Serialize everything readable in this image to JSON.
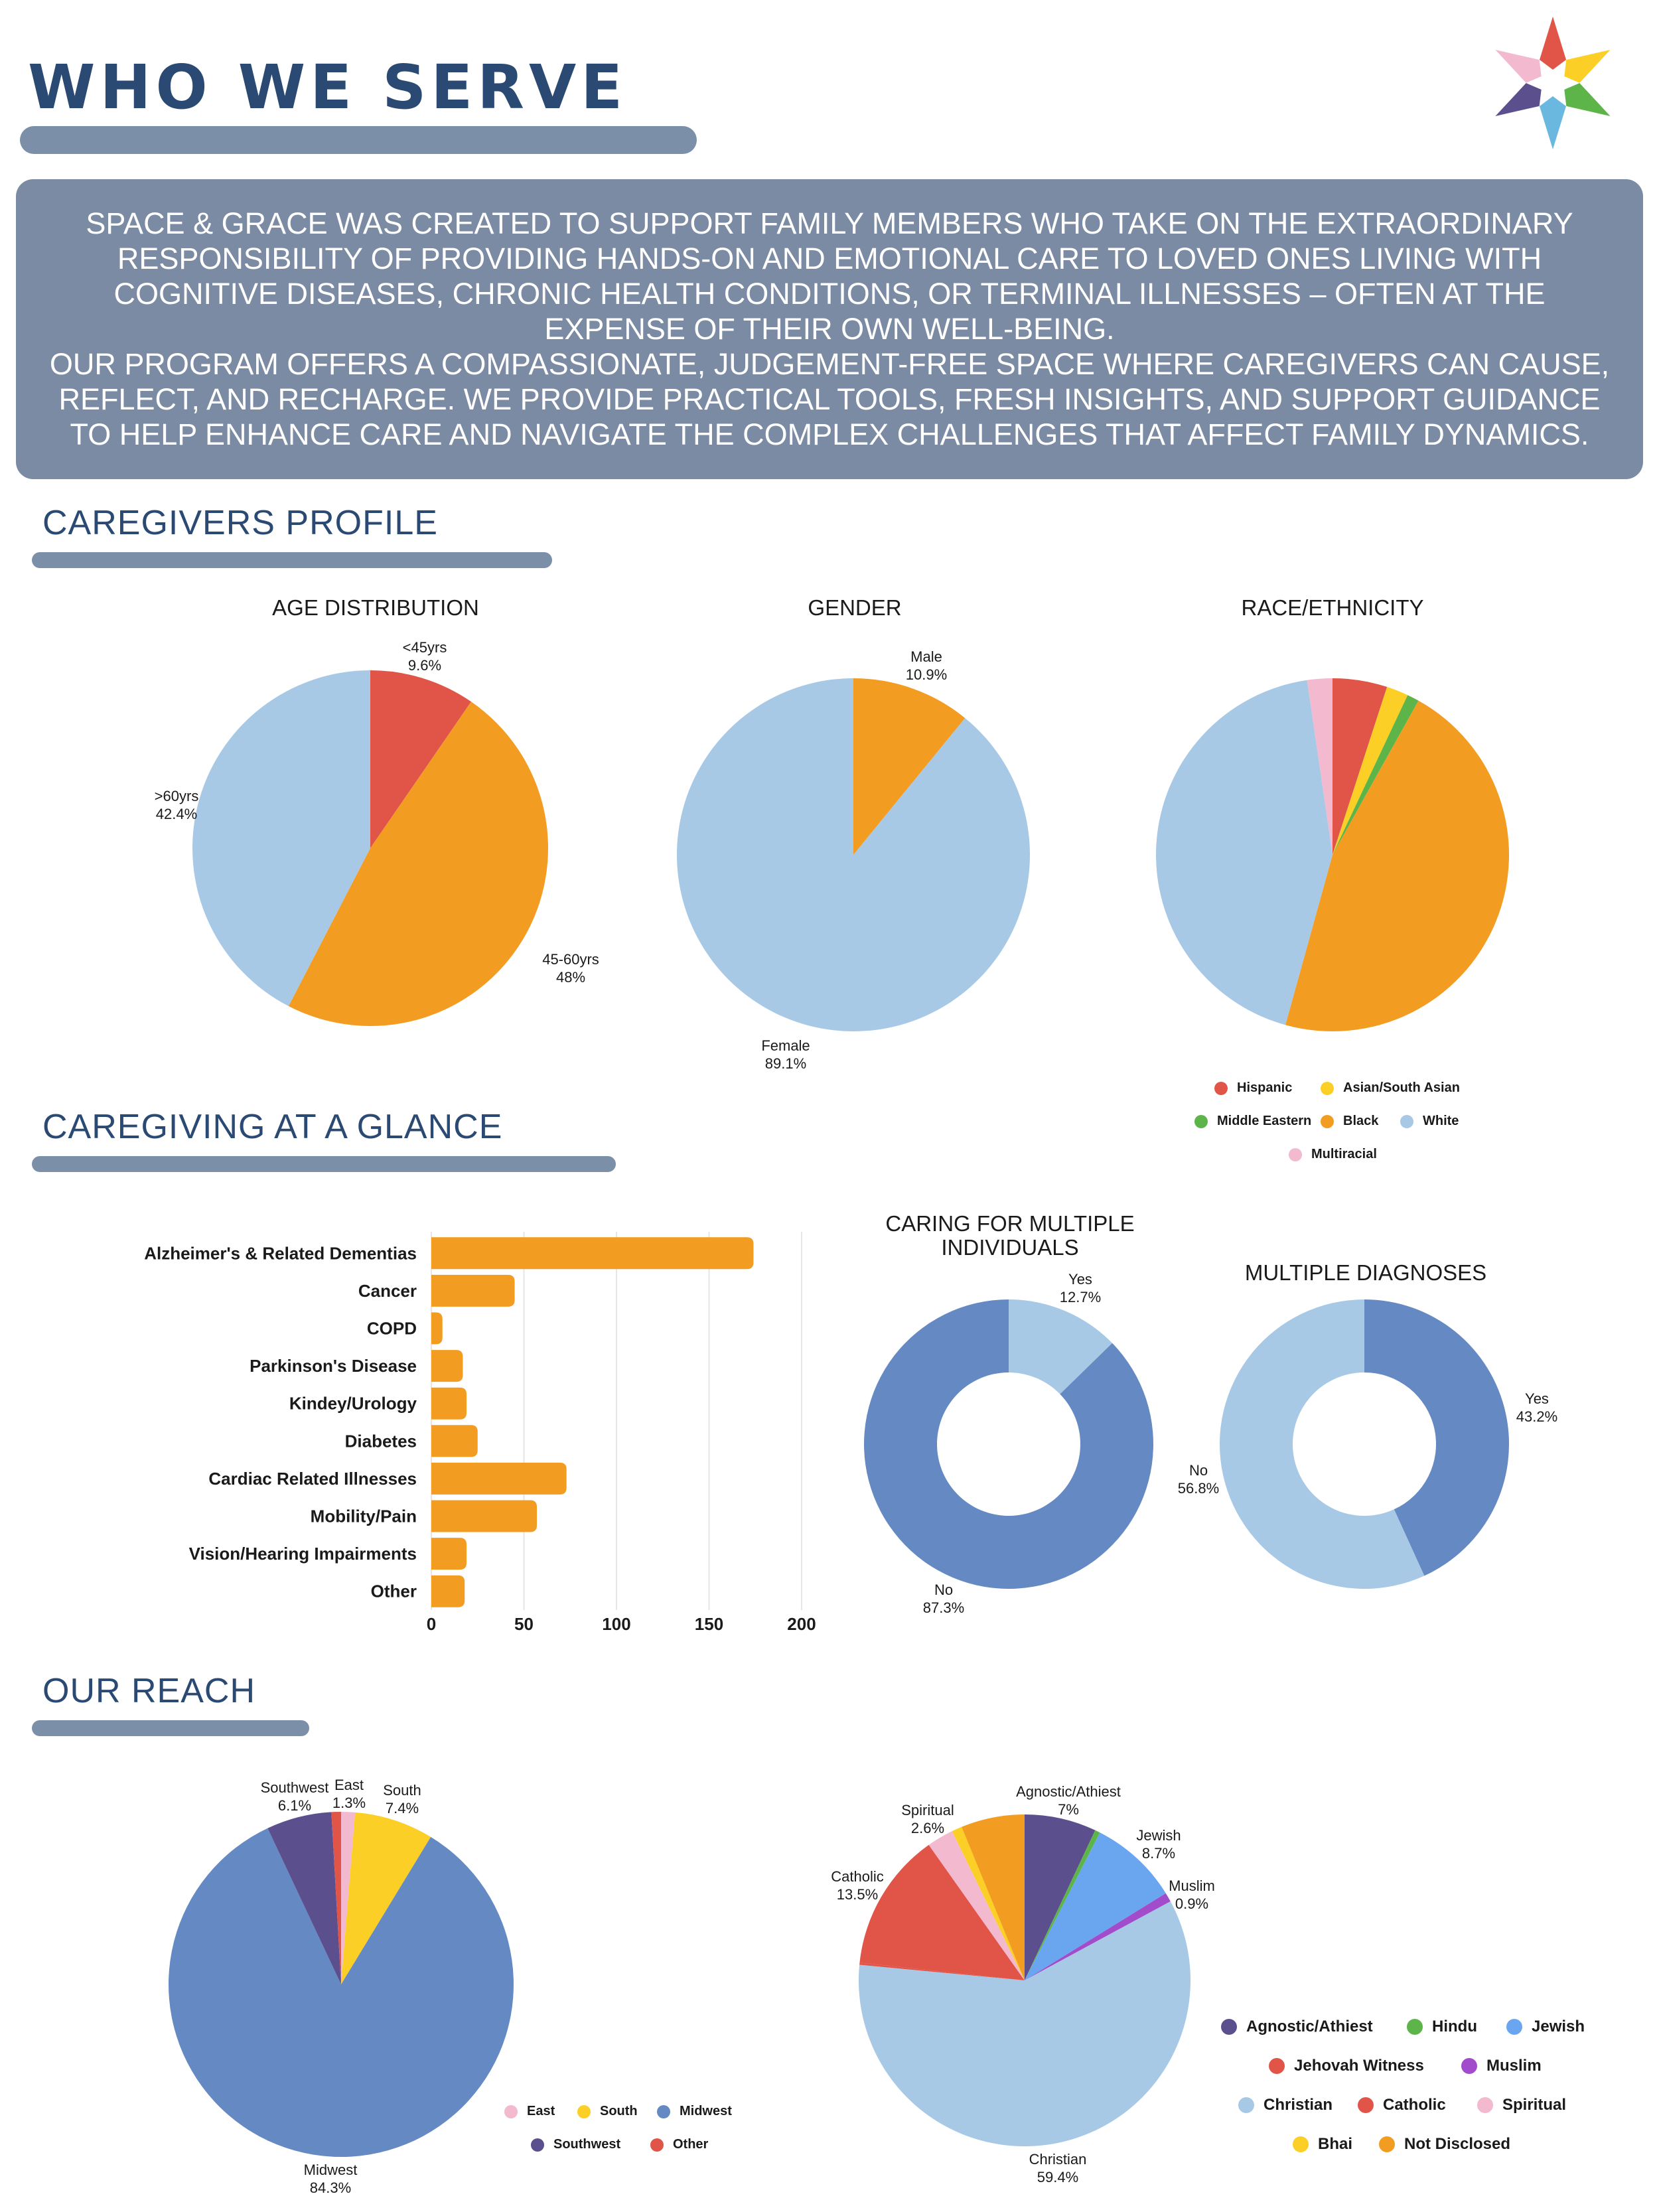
{
  "header": {
    "title": "WHO WE SERVE",
    "intro_p1": "Space & Grace was created to support family members who take on the extraordinary responsibility of providing hands-on and emotional care to loved ones living with cognitive diseases, chronic health conditions, or terminal illnesses – often at the expense of their own well-being.",
    "intro_p2": "Our program offers a compassionate, judgement-free space where caregivers can cause, reflect, and recharge. We provide practical tools, fresh insights, and support guidance to help enhance care and navigate the complex challenges that affect family dynamics."
  },
  "sections": {
    "profile": "CAREGIVERS PROFILE",
    "glance": "CAREGIVING AT A GLANCE",
    "reach": "OUR REACH"
  },
  "colors": {
    "red": "#e05548",
    "orange": "#f39c22",
    "lightblue": "#a8c9e6",
    "yellow": "#fbcf25",
    "green": "#5db54a",
    "pink": "#f2b9cf",
    "blue": "#6489c3",
    "purple": "#5b4f8e",
    "skyblue": "#6aa6f0",
    "magenta": "#a24ccc",
    "titlebar": "#7b8fa8",
    "heading": "#2b4a73"
  },
  "chart_data": [
    {
      "id": "age",
      "type": "pie",
      "title": "AGE DISTRIBUTION",
      "slices": [
        {
          "name": "<45yrs",
          "value": 9.6,
          "label": "9.6%",
          "color": "#e05548"
        },
        {
          "name": "45-60yrs",
          "value": 48,
          "label": "48%",
          "color": "#f39c22"
        },
        {
          "name": ">60yrs",
          "value": 42.4,
          "label": "42.4%",
          "color": "#a8c9e6"
        }
      ]
    },
    {
      "id": "gender",
      "type": "pie",
      "title": "GENDER",
      "slices": [
        {
          "name": "Male",
          "value": 10.9,
          "label": "10.9%",
          "color": "#f39c22"
        },
        {
          "name": "Female",
          "value": 89.1,
          "label": "89.1%",
          "color": "#a8c9e6"
        }
      ]
    },
    {
      "id": "race",
      "type": "pie",
      "title": "RACE/ETHNICITY",
      "slices": [
        {
          "name": "Hispanic",
          "value": 5.0,
          "color": "#e05548"
        },
        {
          "name": "Asian/South Asian",
          "value": 2.0,
          "color": "#fbcf25"
        },
        {
          "name": "Middle Eastern",
          "value": 1.1,
          "color": "#5db54a"
        },
        {
          "name": "Black",
          "value": 46.2,
          "color": "#f39c22"
        },
        {
          "name": "White",
          "value": 43.4,
          "color": "#a8c9e6"
        },
        {
          "name": "Multiracial",
          "value": 2.3,
          "color": "#f2b9cf"
        }
      ],
      "legend": [
        {
          "name": "Hispanic",
          "color": "#e05548"
        },
        {
          "name": "Asian/South Asian",
          "color": "#fbcf25"
        },
        {
          "name": "Middle Eastern",
          "color": "#5db54a"
        },
        {
          "name": "Black",
          "color": "#f39c22"
        },
        {
          "name": "White",
          "color": "#a8c9e6"
        },
        {
          "name": "Multiracial",
          "color": "#f2b9cf"
        }
      ]
    },
    {
      "id": "diagnoses",
      "type": "bar",
      "orientation": "horizontal",
      "categories": [
        "Alzheimer's & Related Dementias",
        "Cancer",
        "COPD",
        "Parkinson's Disease",
        "Kindey/Urology",
        "Diabetes",
        "Cardiac Related Illnesses",
        "Mobility/Pain",
        "Vision/Hearing Impairments",
        "Other"
      ],
      "values": [
        174,
        45,
        6,
        17,
        19,
        25,
        73,
        57,
        19,
        18
      ],
      "xticks": [
        "0",
        "50",
        "100",
        "150",
        "200"
      ],
      "xlim": [
        0,
        200
      ],
      "color": "#f39c22"
    },
    {
      "id": "multiple_individuals",
      "type": "pie",
      "donut": true,
      "title": "CARING FOR MULTIPLE INDIVIDUALS",
      "slices": [
        {
          "name": "Yes",
          "value": 12.7,
          "label": "12.7%",
          "color": "#a8c9e6"
        },
        {
          "name": "No",
          "value": 87.3,
          "label": "87.3%",
          "color": "#6489c3"
        }
      ]
    },
    {
      "id": "multiple_diagnoses",
      "type": "pie",
      "donut": true,
      "title": "MULTIPLE DIAGNOSES",
      "slices": [
        {
          "name": "Yes",
          "value": 43.2,
          "label": "43.2%",
          "color": "#6489c3"
        },
        {
          "name": "No",
          "value": 56.8,
          "label": "56.8%",
          "color": "#a8c9e6"
        }
      ]
    },
    {
      "id": "region",
      "type": "pie",
      "slices": [
        {
          "name": "East",
          "value": 1.3,
          "label": "1.3%",
          "color": "#f2b9cf"
        },
        {
          "name": "South",
          "value": 7.4,
          "label": "7.4%",
          "color": "#fbcf25"
        },
        {
          "name": "Midwest",
          "value": 84.3,
          "label": "84.3%",
          "color": "#6489c3"
        },
        {
          "name": "Southwest",
          "value": 6.1,
          "label": "6.1%",
          "color": "#5b4f8e"
        },
        {
          "name": "Other",
          "value": 0.9,
          "color": "#e05548"
        }
      ],
      "legend": [
        {
          "name": "East",
          "color": "#f2b9cf"
        },
        {
          "name": "South",
          "color": "#fbcf25"
        },
        {
          "name": "Midwest",
          "color": "#6489c3"
        },
        {
          "name": "Southwest",
          "color": "#5b4f8e"
        },
        {
          "name": "Other",
          "color": "#e05548"
        }
      ]
    },
    {
      "id": "religion",
      "type": "pie",
      "slices": [
        {
          "name": "Agnostic/Athiest",
          "value": 7,
          "label": "7%",
          "color": "#5b4f8e"
        },
        {
          "name": "Hindu",
          "value": 0.5,
          "color": "#5db54a"
        },
        {
          "name": "Jewish",
          "value": 8.7,
          "label": "8.7%",
          "color": "#6aa6f0"
        },
        {
          "name": "Muslim",
          "value": 0.9,
          "label": "0.9%",
          "color": "#a24ccc"
        },
        {
          "name": "Christian",
          "value": 59.4,
          "label": "59.4%",
          "color": "#a8c9e6"
        },
        {
          "name": "Jehovah Witness",
          "value": 0.2,
          "color": "#e05548"
        },
        {
          "name": "Catholic",
          "value": 13.5,
          "label": "13.5%",
          "color": "#e05548"
        },
        {
          "name": "Spiritual",
          "value": 2.6,
          "label": "2.6%",
          "color": "#f2b9cf"
        },
        {
          "name": "Bhai",
          "value": 1.0,
          "color": "#fbcf25"
        },
        {
          "name": "Not Disclosed",
          "value": 6.2,
          "color": "#f39c22"
        }
      ],
      "legend": [
        {
          "name": "Agnostic/Athiest",
          "color": "#5b4f8e"
        },
        {
          "name": "Hindu",
          "color": "#5db54a"
        },
        {
          "name": "Jewish",
          "color": "#6aa6f0"
        },
        {
          "name": "Jehovah Witness",
          "color": "#e05548"
        },
        {
          "name": "Muslim",
          "color": "#a24ccc"
        },
        {
          "name": "Christian",
          "color": "#a8c9e6"
        },
        {
          "name": "Catholic",
          "color": "#e05548"
        },
        {
          "name": "Spiritual",
          "color": "#f2b9cf"
        },
        {
          "name": "Bhai",
          "color": "#fbcf25"
        },
        {
          "name": "Not Disclosed",
          "color": "#f39c22"
        }
      ]
    }
  ]
}
